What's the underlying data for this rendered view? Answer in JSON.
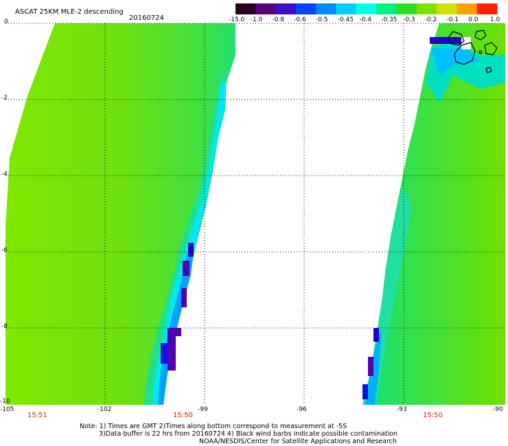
{
  "header": {
    "title": "ASCAT 25KM MLE-2 descending",
    "date": "20160724"
  },
  "colorbar": {
    "labels": [
      "-15.0",
      "-1.0",
      "-0.8",
      "-0.6",
      "-0.5",
      "-0.45",
      "-0.4",
      "-0.35",
      "-0.3",
      "-0.2",
      "-0.1",
      "0.0",
      "1.0"
    ],
    "colors": [
      "#2a0020",
      "#5a007a",
      "#3a10c8",
      "#0044ff",
      "#0088ff",
      "#00ccff",
      "#00ffe8",
      "#00f080",
      "#28e020",
      "#80e000",
      "#d0e000",
      "#ffa000",
      "#ff2000"
    ]
  },
  "axes": {
    "y_labels": [
      "0",
      "-2",
      "-4",
      "-6",
      "-8",
      "-10"
    ],
    "x_labels": [
      "-105",
      "-102",
      "-99",
      "-96",
      "-93",
      "-90"
    ]
  },
  "times": {
    "left": "15:51",
    "mid": "15:50",
    "right": "15:50"
  },
  "notes": {
    "line1": "Note: 1) Times are GMT 2)Times along bottom correspond to measurement at -5S",
    "line2": "3)Data buffer is 22 hrs from 20160724 4) Black wind barbs indicate possible contamination",
    "line3": "NOAA/NESDIS/Center for Satellite Applications and Research"
  }
}
